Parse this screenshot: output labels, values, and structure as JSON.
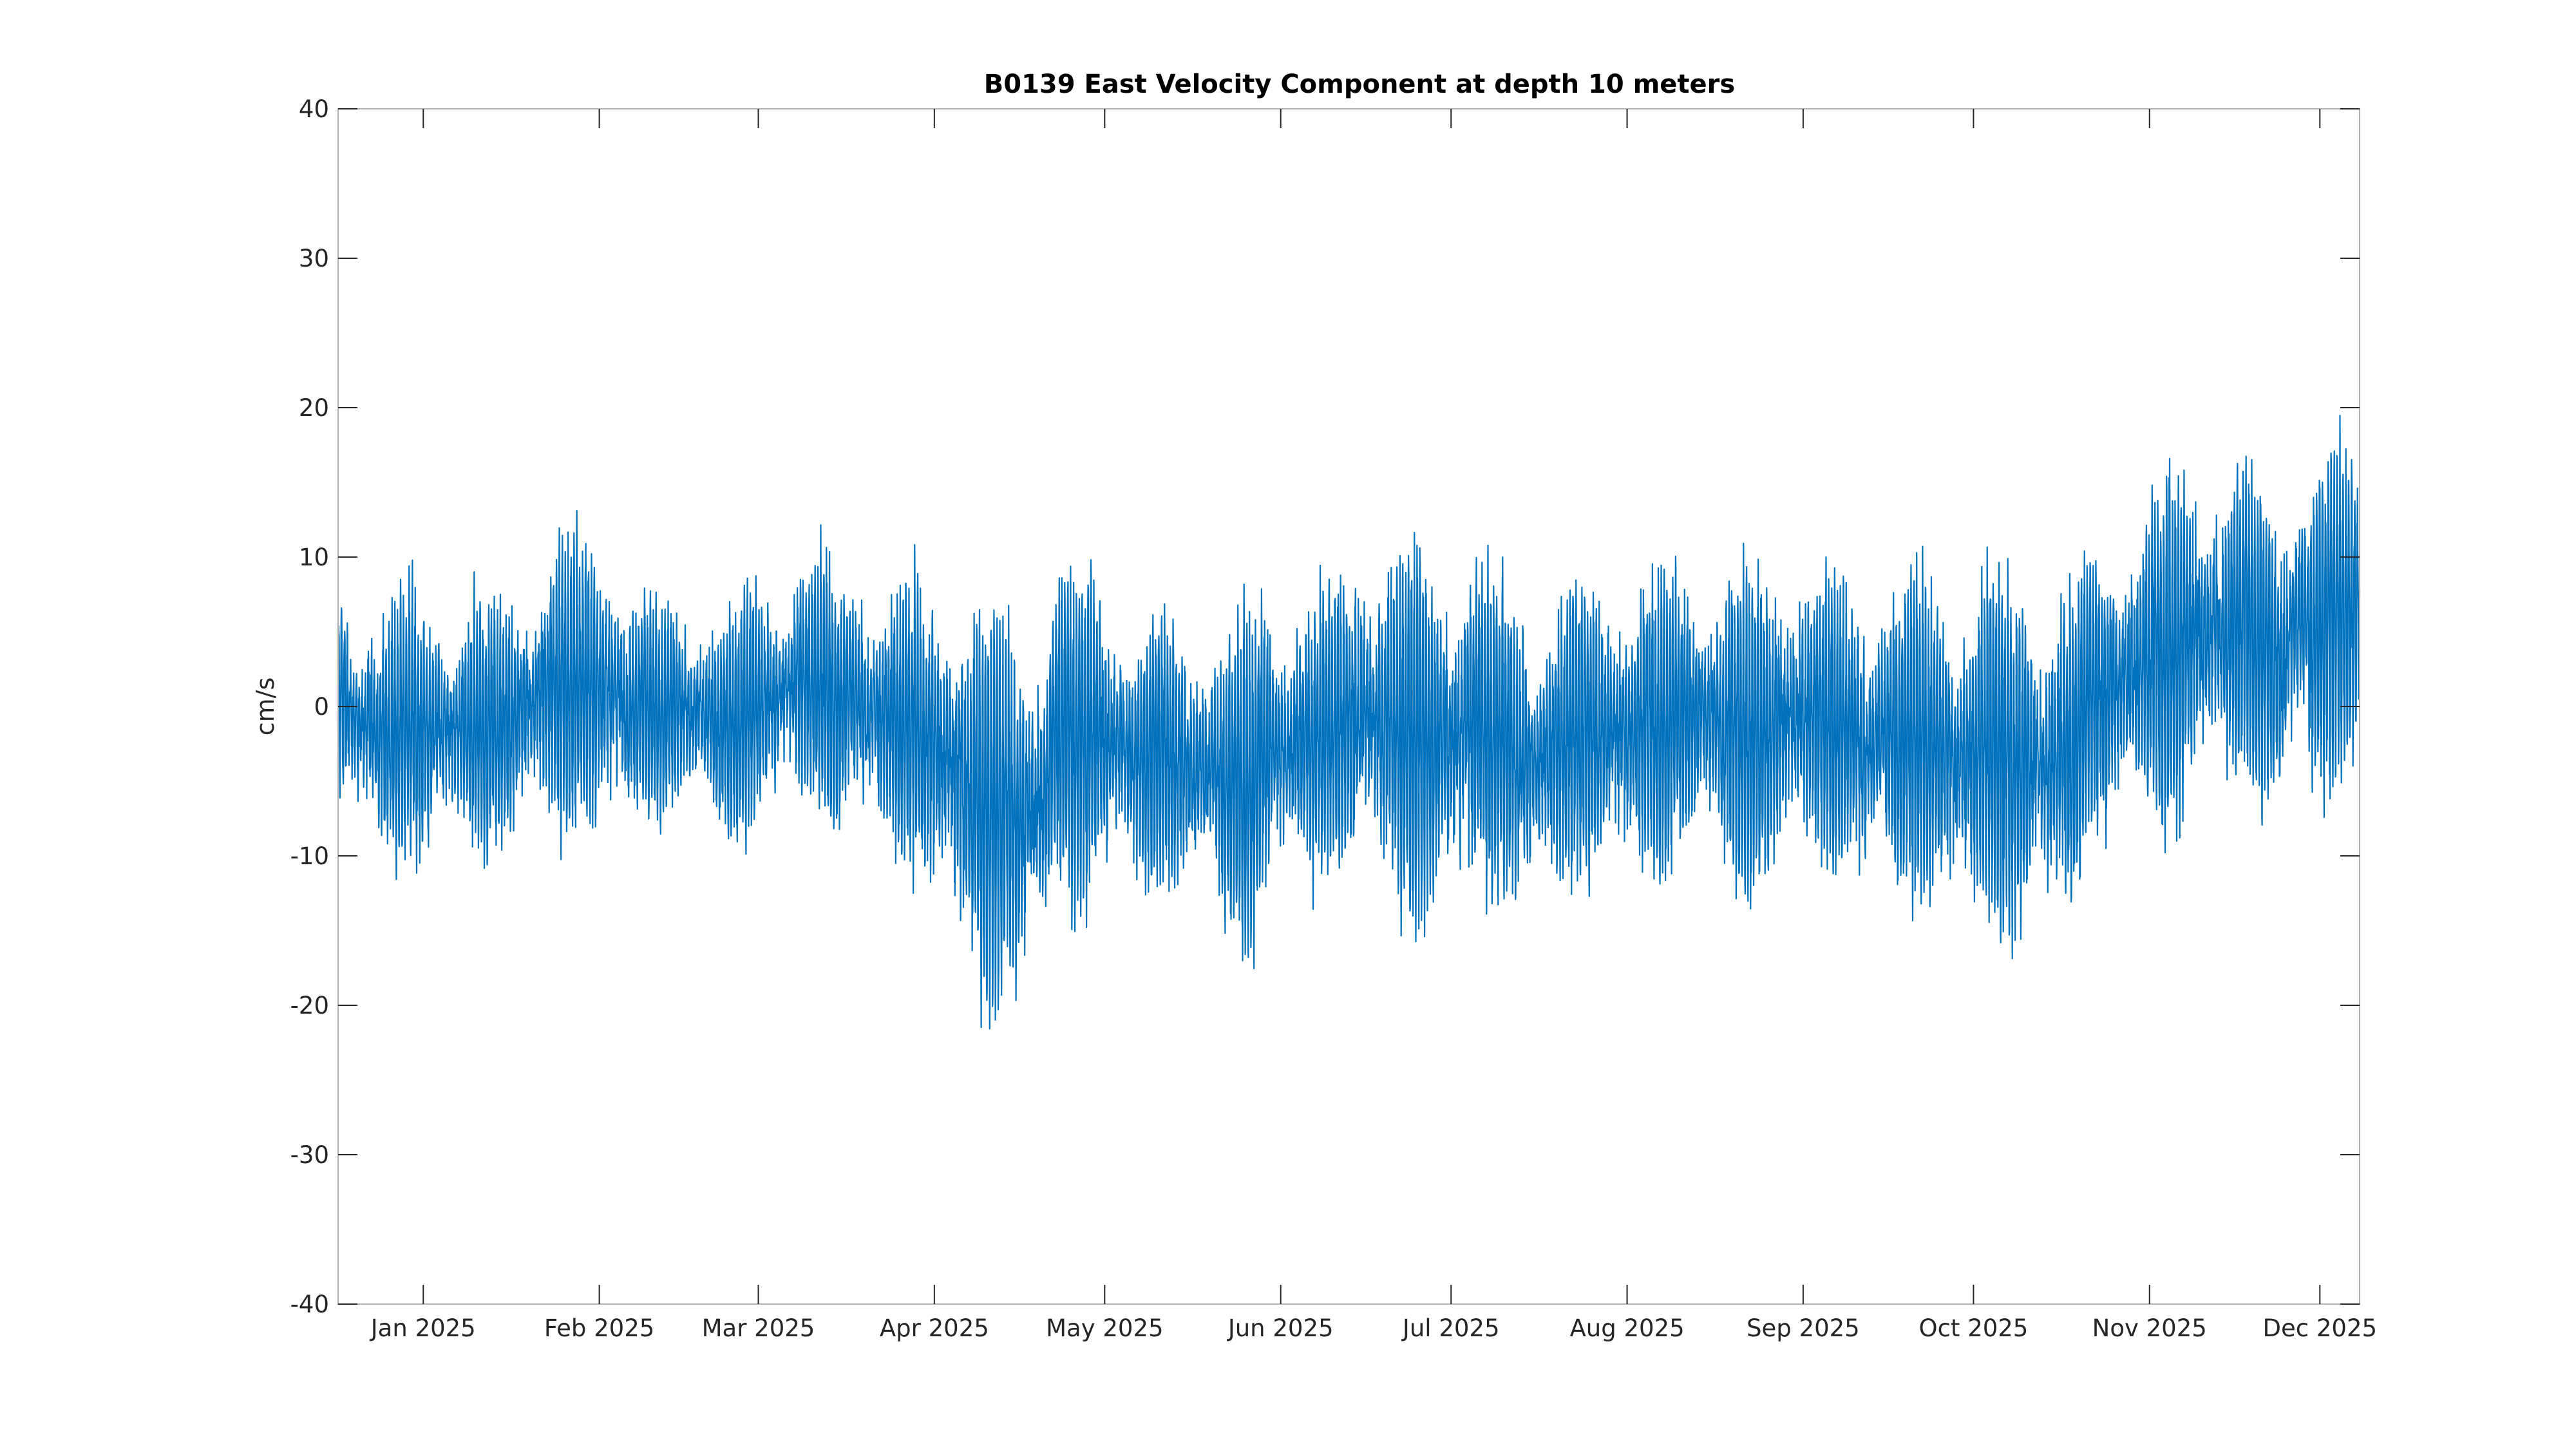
{
  "chart_data": {
    "type": "line",
    "title": "B0139 East Velocity Component at depth 10 meters",
    "xlabel": "",
    "ylabel": "cm/s",
    "xlim": [
      "2024-12-17",
      "2025-12-08"
    ],
    "ylim": [
      -40,
      40
    ],
    "y_ticks": [
      40,
      30,
      20,
      10,
      0,
      -10,
      -20,
      -30,
      -40
    ],
    "y_tick_labels": [
      "40",
      "30",
      "20",
      "10",
      "0",
      "-10",
      "-20",
      "-30",
      "-40"
    ],
    "x_ticks": [
      "2025-01-01",
      "2025-02-01",
      "2025-03-01",
      "2025-04-01",
      "2025-05-01",
      "2025-06-01",
      "2025-07-01",
      "2025-08-01",
      "2025-09-01",
      "2025-10-01",
      "2025-11-01",
      "2025-12-01"
    ],
    "x_tick_labels": [
      "Jan 2025",
      "Feb 2025",
      "Mar 2025",
      "Apr 2025",
      "May 2025",
      "Jun 2025",
      "Jul 2025",
      "Aug 2025",
      "Sep 2025",
      "Oct 2025",
      "Nov 2025",
      "Dec 2025"
    ],
    "grid": false,
    "legend": "none",
    "colors": {
      "series": "#0072BD",
      "axes": "#262626",
      "box": "#b0b0b0"
    },
    "series": [
      {
        "x": [
          "2024-12-17",
          "2024-12-24",
          "2024-12-31",
          "2025-01-07",
          "2025-01-14",
          "2025-01-21",
          "2025-01-28",
          "2025-02-04",
          "2025-02-11",
          "2025-02-18",
          "2025-02-25",
          "2025-03-04",
          "2025-03-11",
          "2025-03-18",
          "2025-03-25",
          "2025-04-01",
          "2025-04-08",
          "2025-04-15",
          "2025-04-22",
          "2025-04-29",
          "2025-05-06",
          "2025-05-13",
          "2025-05-20",
          "2025-05-27",
          "2025-06-03",
          "2025-06-10",
          "2025-06-17",
          "2025-06-24",
          "2025-07-01",
          "2025-07-08",
          "2025-07-15",
          "2025-07-22",
          "2025-07-29",
          "2025-08-05",
          "2025-08-12",
          "2025-08-19",
          "2025-08-26",
          "2025-09-02",
          "2025-09-09",
          "2025-09-16",
          "2025-09-23",
          "2025-09-30",
          "2025-10-07",
          "2025-10-14",
          "2025-10-21",
          "2025-10-28",
          "2025-11-04",
          "2025-11-11",
          "2025-11-18",
          "2025-11-25",
          "2025-12-02",
          "2025-12-08"
        ],
        "values": [
          0.5,
          -2,
          -1,
          -1.5,
          -1,
          0.5,
          2,
          1.5,
          0,
          0,
          -1,
          1,
          2,
          0.5,
          -1,
          -2,
          -6,
          -7,
          -3,
          -1.5,
          -3,
          -3.5,
          -4,
          -5,
          -2.5,
          -1.5,
          -1,
          -1,
          -1.5,
          -2,
          -3,
          -2.5,
          -1,
          -1,
          -0.5,
          -1,
          -2,
          0,
          -1,
          -1.5,
          -2,
          -2.5,
          -3,
          -4,
          0.5,
          2,
          4,
          5,
          6,
          4,
          6,
          7
        ],
        "amplitudes": [
          9,
          9,
          10,
          9,
          9,
          10,
          11,
          10,
          8,
          8,
          9,
          9,
          9,
          10,
          10,
          12,
          14,
          15,
          13,
          12,
          10,
          10,
          11,
          12,
          10,
          10,
          13,
          14,
          13,
          12,
          11,
          11,
          11,
          11,
          11,
          12,
          12,
          11,
          11,
          12,
          12,
          13,
          14,
          14,
          11,
          11,
          13,
          12,
          12,
          12,
          13,
          11
        ]
      }
    ]
  }
}
